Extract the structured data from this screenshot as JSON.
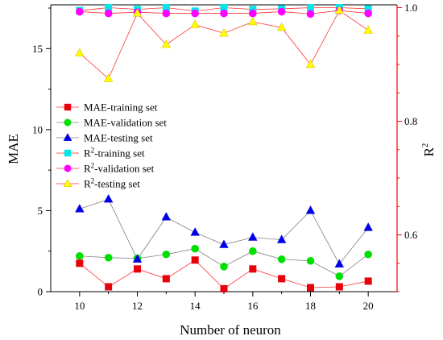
{
  "chart_data": {
    "type": "line",
    "xlabel": "Number of neuron",
    "ylabel_left": "MAE",
    "ylabel_right": "R",
    "ylabel_right_sup": "2",
    "x": [
      10,
      11,
      12,
      13,
      14,
      15,
      16,
      17,
      18,
      19,
      20
    ],
    "xlim": [
      9,
      21
    ],
    "x_ticks": [
      "10",
      "12",
      "14",
      "16",
      "18",
      "20"
    ],
    "ylim_left": [
      0,
      17.7
    ],
    "y_ticks_left": [
      "0",
      "5",
      "10",
      "15"
    ],
    "ylim_right": [
      0.5,
      1.005
    ],
    "y_ticks_right": [
      "0.6",
      "0.8",
      "1.0"
    ],
    "legend_position": "center-left",
    "series": [
      {
        "name": "MAE-training set",
        "legend_main": "MAE-training set",
        "legend_sup": "",
        "legend_rest": "",
        "axis": "left",
        "marker": "square",
        "color": "#e8000b",
        "line_color": "#ff3333",
        "values": [
          1.75,
          0.3,
          1.4,
          0.8,
          1.95,
          0.18,
          1.4,
          0.8,
          0.25,
          0.3,
          0.65
        ]
      },
      {
        "name": "MAE-validation set",
        "legend_main": "MAE-validation set",
        "legend_sup": "",
        "legend_rest": "",
        "axis": "left",
        "marker": "circle",
        "color": "#00e000",
        "line_color": "#808080",
        "values": [
          2.2,
          2.1,
          2.05,
          2.3,
          2.65,
          1.55,
          2.5,
          2.0,
          1.9,
          0.95,
          2.3
        ]
      },
      {
        "name": "MAE-testing set",
        "legend_main": "MAE-testing set",
        "legend_sup": "",
        "legend_rest": "",
        "axis": "left",
        "marker": "triangle",
        "color": "#0000e6",
        "line_color": "#808080",
        "values": [
          5.1,
          5.7,
          2.0,
          4.6,
          3.65,
          2.9,
          3.35,
          3.2,
          5.0,
          1.7,
          3.95
        ]
      },
      {
        "name": "R2-training set",
        "legend_main": "R",
        "legend_sup": "2",
        "legend_rest": "-training set",
        "axis": "right",
        "marker": "square",
        "color": "#00e8e8",
        "line_color": "#ff3333",
        "values": [
          0.995,
          1.0,
          0.997,
          1.0,
          0.994,
          1.0,
          0.997,
          0.998,
          1.0,
          1.0,
          0.998
        ]
      },
      {
        "name": "R2-validation set",
        "legend_main": "R",
        "legend_sup": "2",
        "legend_rest": "-validation set",
        "axis": "right",
        "marker": "circle",
        "color": "#ff00ff",
        "line_color": "#ff3333",
        "values": [
          0.993,
          0.99,
          0.992,
          0.99,
          0.99,
          0.99,
          0.99,
          0.993,
          0.989,
          0.995,
          0.99
        ]
      },
      {
        "name": "R2-testing set",
        "legend_main": "R",
        "legend_sup": "2",
        "legend_rest": "-testing set",
        "axis": "right",
        "marker": "triangle",
        "color": "#ffff00",
        "line_color": "#ff3333",
        "values": [
          0.92,
          0.875,
          0.99,
          0.935,
          0.97,
          0.955,
          0.975,
          0.965,
          0.9,
          0.995,
          0.96
        ]
      }
    ],
    "colors": {
      "left_axis": "#000000",
      "right_axis": "#ff0000",
      "marker_outline_triangle_yellow": "#e0c000"
    }
  }
}
